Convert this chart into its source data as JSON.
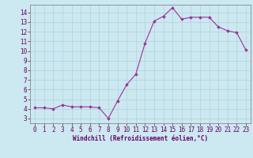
{
  "x": [
    0,
    1,
    2,
    3,
    4,
    5,
    6,
    7,
    8,
    9,
    10,
    11,
    12,
    13,
    14,
    15,
    16,
    17,
    18,
    19,
    20,
    21,
    22,
    23
  ],
  "y": [
    4.1,
    4.1,
    4.0,
    4.4,
    4.2,
    4.2,
    4.2,
    4.1,
    3.0,
    4.8,
    6.5,
    7.6,
    10.8,
    13.1,
    13.6,
    14.5,
    13.3,
    13.5,
    13.5,
    13.5,
    12.5,
    12.1,
    11.9,
    10.1
  ],
  "line_color": "#993399",
  "marker": "D",
  "marker_size": 1.8,
  "bg_color": "#cce8f0",
  "grid_color": "#aaccdd",
  "xlabel": "Windchill (Refroidissement éolien,°C)",
  "xlabel_color": "#660066",
  "tick_color": "#660066",
  "xlim": [
    -0.5,
    23.5
  ],
  "ylim": [
    2.5,
    14.8
  ],
  "yticks": [
    3,
    4,
    5,
    6,
    7,
    8,
    9,
    10,
    11,
    12,
    13,
    14
  ],
  "xticks": [
    0,
    1,
    2,
    3,
    4,
    5,
    6,
    7,
    8,
    9,
    10,
    11,
    12,
    13,
    14,
    15,
    16,
    17,
    18,
    19,
    20,
    21,
    22,
    23
  ],
  "spine_color": "#777777",
  "label_fontsize": 5.5,
  "tick_fontsize": 5.5
}
